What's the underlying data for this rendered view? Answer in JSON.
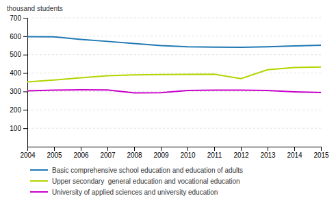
{
  "chart_data": {
    "type": "line",
    "ylabel": "thousand students",
    "x": [
      2004,
      2005,
      2006,
      2007,
      2008,
      2009,
      2010,
      2011,
      2012,
      2013,
      2014,
      2015
    ],
    "series": [
      {
        "name": "Basic comprehensive school education and education of adults",
        "color": "#1f78b4",
        "line_style": "solid",
        "values": [
          598,
          597,
          583,
          572,
          560,
          549,
          543,
          541,
          540,
          543,
          547,
          551
        ]
      },
      {
        "name": "Upper secondary  general education and vocational education",
        "color": "#b3d400",
        "line_style": "solid",
        "values": [
          352,
          362,
          374,
          385,
          390,
          392,
          393,
          394,
          370,
          418,
          430,
          433
        ]
      },
      {
        "name": "University of applied sciences and university education",
        "color": "#cc00cc",
        "line_style": "solid",
        "values": [
          303,
          307,
          309,
          308,
          292,
          293,
          305,
          307,
          307,
          305,
          298,
          294
        ]
      }
    ],
    "xlim": [
      2004,
      2015
    ],
    "xticks": [
      2004,
      2005,
      2006,
      2007,
      2008,
      2009,
      2010,
      2011,
      2012,
      2013,
      2014,
      2015
    ],
    "ylim": [
      0,
      700
    ],
    "yticks": [
      100,
      200,
      300,
      400,
      500,
      600,
      700
    ],
    "grid": true,
    "legend": "bottom"
  }
}
